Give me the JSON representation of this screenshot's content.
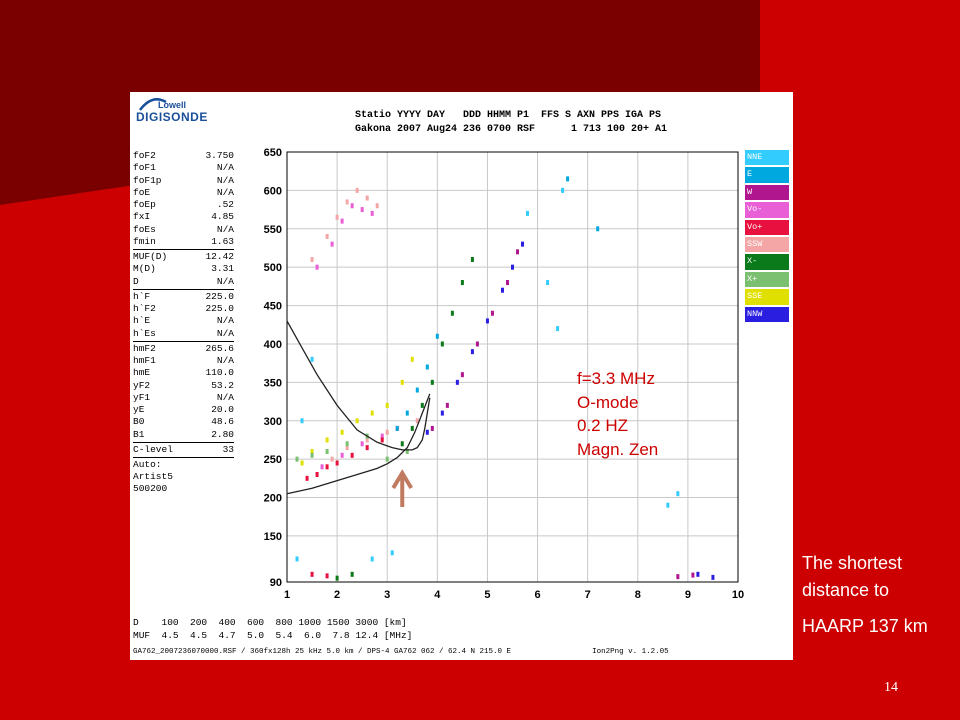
{
  "slide": {
    "page_number": "14",
    "annotation_lines": [
      "f=3.3 MHz",
      "O-mode",
      "0.2 HZ",
      "Magn. Zen"
    ],
    "side_note_lines": [
      "The shortest",
      "distance to",
      "HAARP 137 km"
    ]
  },
  "logo": {
    "top": "Lowell",
    "main": "DIGISONDE"
  },
  "header": {
    "line1": "Statio YYYY DAY   DDD HHMM P1  FFS S AXN PPS IGA PS",
    "line2": "Gakona 2007 Aug24 236 0700 RSF      1 713 100 20+ A1"
  },
  "params_group1": [
    {
      "label": "foF2",
      "value": "3.750"
    },
    {
      "label": "foF1",
      "value": "N/A"
    },
    {
      "label": "foF1p",
      "value": "N/A"
    },
    {
      "label": "foE",
      "value": "N/A"
    },
    {
      "label": "foEp",
      "value": ".52"
    },
    {
      "label": "fxI",
      "value": "4.85"
    },
    {
      "label": "foEs",
      "value": "N/A"
    },
    {
      "label": "fmin",
      "value": "1.63"
    }
  ],
  "params_group2": [
    {
      "label": "MUF(D)",
      "value": "12.42"
    },
    {
      "label": "M(D)",
      "value": "3.31"
    },
    {
      "label": "D",
      "value": "N/A"
    }
  ],
  "params_group3": [
    {
      "label": "h`F",
      "value": "225.0"
    },
    {
      "label": "h`F2",
      "value": "225.0"
    },
    {
      "label": "h`E",
      "value": "N/A"
    },
    {
      "label": "h`Es",
      "value": "N/A"
    }
  ],
  "params_group4": [
    {
      "label": "hmF2",
      "value": "265.6"
    },
    {
      "label": "hmF1",
      "value": "N/A"
    },
    {
      "label": "hmE",
      "value": "110.0"
    },
    {
      "label": "yF2",
      "value": "53.2"
    },
    {
      "label": "yF1",
      "value": "N/A"
    },
    {
      "label": "yE",
      "value": "20.0"
    },
    {
      "label": "B0",
      "value": "48.6"
    },
    {
      "label": "B1",
      "value": "2.80"
    }
  ],
  "params_group5": [
    {
      "label": "C-level",
      "value": "33"
    }
  ],
  "auto": {
    "line1": "Auto:",
    "line2": "Artist5",
    "line3": "500200"
  },
  "bottom_rows": {
    "d_row": "D    100  200  400  600  800 1000 1500 3000 [km]",
    "muf_row": "MUF  4.5  4.5  4.7  5.0  5.4  6.0  7.8 12.4 [MHz]"
  },
  "footer": "GA762_2007236070000.RSF / 360fx128h 25 kHz 5.0 km / DPS-4 GA762 062 / 62.4 N 215.0 E                  Ion2Png v. 1.2.05",
  "legend": [
    {
      "label": "NNE",
      "color": "#33ccff"
    },
    {
      "label": "E",
      "color": "#00a8e0"
    },
    {
      "label": "W",
      "color": "#b0178e"
    },
    {
      "label": "Vo-",
      "color": "#e85fd6"
    },
    {
      "label": "Vo+",
      "color": "#e8103e"
    },
    {
      "label": "SSW",
      "color": "#f4a6a6"
    },
    {
      "label": "X-",
      "color": "#0a7a1a"
    },
    {
      "label": "X+",
      "color": "#7ac070"
    },
    {
      "label": "SSE",
      "color": "#e0e000"
    },
    {
      "label": "NNW",
      "color": "#2a1ee0"
    }
  ],
  "chart_data": {
    "type": "scatter",
    "title": "",
    "xlabel": "",
    "ylabel": "",
    "xlim": [
      1,
      10
    ],
    "ylim": [
      90,
      650
    ],
    "x_ticks": [
      1,
      2,
      3,
      4,
      5,
      6,
      7,
      8,
      9,
      10
    ],
    "y_ticks": [
      90,
      150,
      200,
      250,
      300,
      350,
      400,
      450,
      500,
      550,
      600,
      650
    ],
    "grid": true,
    "series": [
      {
        "name": "SSW",
        "color": "#f4a6a6",
        "points": [
          [
            1.5,
            510
          ],
          [
            1.8,
            540
          ],
          [
            2.0,
            565
          ],
          [
            2.2,
            585
          ],
          [
            2.4,
            600
          ],
          [
            2.6,
            590
          ],
          [
            2.8,
            580
          ],
          [
            1.9,
            250
          ],
          [
            2.2,
            265
          ],
          [
            2.6,
            275
          ],
          [
            3.0,
            285
          ],
          [
            3.6,
            300
          ]
        ]
      },
      {
        "name": "Vo-",
        "color": "#e85fd6",
        "points": [
          [
            1.6,
            500
          ],
          [
            1.9,
            530
          ],
          [
            2.1,
            560
          ],
          [
            2.3,
            580
          ],
          [
            2.5,
            575
          ],
          [
            2.7,
            570
          ],
          [
            1.7,
            240
          ],
          [
            2.1,
            255
          ],
          [
            2.5,
            270
          ],
          [
            2.9,
            280
          ]
        ]
      },
      {
        "name": "Vo+",
        "color": "#e8103e",
        "points": [
          [
            1.4,
            225
          ],
          [
            1.6,
            230
          ],
          [
            1.8,
            240
          ],
          [
            2.0,
            245
          ],
          [
            2.3,
            255
          ],
          [
            2.6,
            265
          ],
          [
            2.9,
            275
          ],
          [
            3.2,
            290
          ],
          [
            1.5,
            100
          ],
          [
            1.8,
            98
          ]
        ]
      },
      {
        "name": "SSE",
        "color": "#e0e000",
        "points": [
          [
            1.3,
            245
          ],
          [
            1.5,
            260
          ],
          [
            1.8,
            275
          ],
          [
            2.1,
            285
          ],
          [
            2.4,
            300
          ],
          [
            2.7,
            310
          ],
          [
            3.0,
            320
          ],
          [
            3.3,
            350
          ],
          [
            3.5,
            380
          ]
        ]
      },
      {
        "name": "X-",
        "color": "#0a7a1a",
        "points": [
          [
            3.3,
            270
          ],
          [
            3.5,
            290
          ],
          [
            3.7,
            320
          ],
          [
            3.9,
            350
          ],
          [
            4.1,
            400
          ],
          [
            4.3,
            440
          ],
          [
            4.5,
            480
          ],
          [
            4.7,
            510
          ],
          [
            2.0,
            95
          ],
          [
            2.3,
            100
          ]
        ]
      },
      {
        "name": "X+",
        "color": "#7ac070",
        "points": [
          [
            1.2,
            250
          ],
          [
            1.5,
            255
          ],
          [
            1.8,
            260
          ],
          [
            2.2,
            270
          ],
          [
            2.6,
            280
          ],
          [
            3.0,
            250
          ],
          [
            3.4,
            260
          ]
        ]
      },
      {
        "name": "W",
        "color": "#b0178e",
        "points": [
          [
            3.9,
            290
          ],
          [
            4.2,
            320
          ],
          [
            4.5,
            360
          ],
          [
            4.8,
            400
          ],
          [
            5.1,
            440
          ],
          [
            5.4,
            480
          ],
          [
            5.6,
            520
          ],
          [
            8.8,
            97
          ],
          [
            9.1,
            99
          ]
        ]
      },
      {
        "name": "NNW",
        "color": "#2a1ee0",
        "points": [
          [
            3.8,
            285
          ],
          [
            4.1,
            310
          ],
          [
            4.4,
            350
          ],
          [
            4.7,
            390
          ],
          [
            5.0,
            430
          ],
          [
            5.3,
            470
          ],
          [
            5.5,
            500
          ],
          [
            5.7,
            530
          ],
          [
            9.2,
            100
          ],
          [
            9.5,
            96
          ]
        ]
      },
      {
        "name": "NNE",
        "color": "#33ccff",
        "points": [
          [
            1.2,
            120
          ],
          [
            1.3,
            300
          ],
          [
            1.5,
            380
          ],
          [
            2.7,
            120
          ],
          [
            3.1,
            128
          ],
          [
            5.8,
            570
          ],
          [
            6.5,
            600
          ],
          [
            6.2,
            480
          ],
          [
            6.4,
            420
          ],
          [
            8.6,
            190
          ],
          [
            8.8,
            205
          ]
        ]
      },
      {
        "name": "E",
        "color": "#00a8e0",
        "points": [
          [
            3.2,
            290
          ],
          [
            3.4,
            310
          ],
          [
            3.6,
            340
          ],
          [
            3.8,
            370
          ],
          [
            4.0,
            410
          ],
          [
            6.6,
            615
          ],
          [
            7.2,
            550
          ]
        ]
      }
    ],
    "curves": [
      {
        "points": [
          [
            1,
            430
          ],
          [
            1.3,
            395
          ],
          [
            1.6,
            360
          ],
          [
            2.0,
            320
          ],
          [
            2.4,
            288
          ],
          [
            2.8,
            272
          ],
          [
            3.1,
            265
          ],
          [
            3.3,
            262
          ],
          [
            3.5,
            262
          ],
          [
            3.6,
            265
          ],
          [
            3.7,
            275
          ],
          [
            3.75,
            290
          ],
          [
            3.8,
            310
          ],
          [
            3.85,
            330
          ]
        ]
      },
      {
        "points": [
          [
            1,
            205
          ],
          [
            1.5,
            212
          ],
          [
            2.0,
            222
          ],
          [
            2.5,
            232
          ],
          [
            2.8,
            238
          ],
          [
            3.0,
            244
          ],
          [
            3.2,
            252
          ],
          [
            3.4,
            265
          ],
          [
            3.55,
            285
          ],
          [
            3.7,
            310
          ],
          [
            3.85,
            335
          ]
        ]
      }
    ]
  }
}
